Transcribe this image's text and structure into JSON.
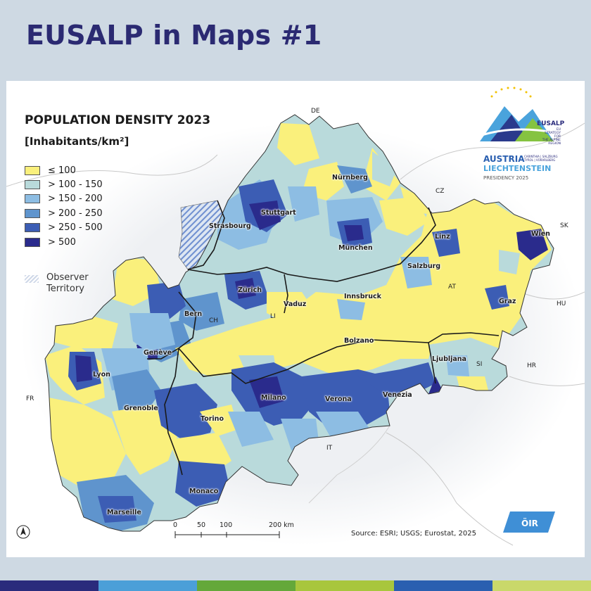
{
  "page": {
    "title": "EUSALP in Maps #1"
  },
  "legend": {
    "title": "POPULATION DENSITY 2023",
    "unit": "[Inhabitants/km²]",
    "classes": [
      {
        "label": "≤ 100",
        "color": "#faf07c"
      },
      {
        "label": "> 100 - 150",
        "color": "#b9dadb"
      },
      {
        "label": "> 150 - 200",
        "color": "#8dbde3"
      },
      {
        "label": "> 200 - 250",
        "color": "#5f94cd"
      },
      {
        "label": "> 250 - 500",
        "color": "#3c5db4"
      },
      {
        "label": "> 500",
        "color": "#2a2b8c"
      }
    ],
    "observer": "Observer\nTerritory"
  },
  "cities": [
    {
      "name": "Nürnberg"
    },
    {
      "name": "Stuttgart"
    },
    {
      "name": "Strasbourg"
    },
    {
      "name": "München"
    },
    {
      "name": "Linz"
    },
    {
      "name": "Wien"
    },
    {
      "name": "Salzburg"
    },
    {
      "name": "Zürich"
    },
    {
      "name": "Vaduz"
    },
    {
      "name": "Innsbruck"
    },
    {
      "name": "Bern"
    },
    {
      "name": "Graz"
    },
    {
      "name": "Genève"
    },
    {
      "name": "Bolzano"
    },
    {
      "name": "Ljubljana"
    },
    {
      "name": "Lyon"
    },
    {
      "name": "Milano"
    },
    {
      "name": "Verona"
    },
    {
      "name": "Venezia"
    },
    {
      "name": "Grenoble"
    },
    {
      "name": "Torino"
    },
    {
      "name": "Monaco"
    },
    {
      "name": "Marseille"
    }
  ],
  "countries": [
    "DE",
    "CZ",
    "SK",
    "AT",
    "HU",
    "CH",
    "LI",
    "SI",
    "HR",
    "FR",
    "IT"
  ],
  "scale_bar": {
    "labels": [
      "0",
      "50",
      "100",
      "200 km"
    ]
  },
  "source": "Source: ESRI; USGS; Eurostat, 2025",
  "logos": {
    "eusalp": {
      "name": "EUSALP",
      "tagline": "EU STRATEGY FOR\nTHE ALPINE REGION",
      "presidency_line1": "AUSTRIA",
      "presidency_line2": "LIECHTENSTEIN",
      "regions": "CARINTHIA | SALZBURG\nTYROL | VORARLBERG",
      "presidency": "PRESIDENCY 2025"
    },
    "oir": "ÖIR"
  },
  "colors": {
    "title": "#2b2a72",
    "footer": [
      "#2a2b7c",
      "#4b9fd8",
      "#64a83a",
      "#a8c63d",
      "#2a5fb0",
      "#c9d86a"
    ]
  }
}
